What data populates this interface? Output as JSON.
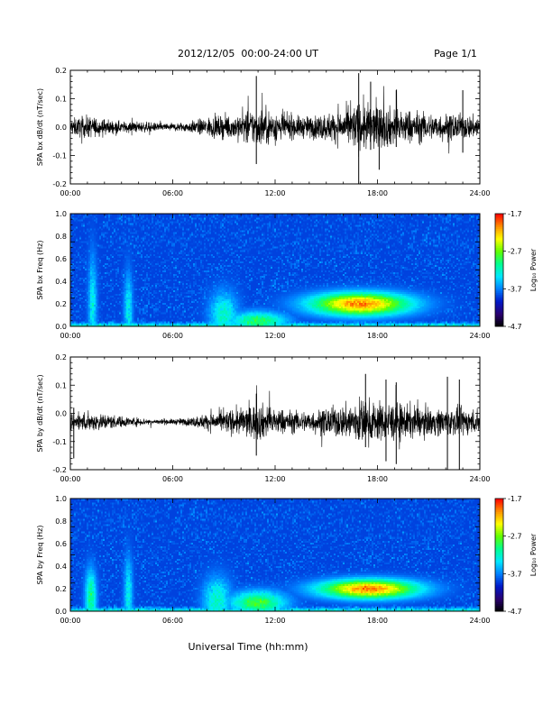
{
  "header": {
    "title": "2012/12/05  00:00-24:00 UT",
    "page": "Page 1/1"
  },
  "x_axis_title": "Universal Time (hh:mm)",
  "colorbar": {
    "label": "Log₁₀ Power",
    "ticks": [
      "-1.7",
      "-2.7",
      "-3.7",
      "-4.7"
    ],
    "values": [
      -1.7,
      -2.7,
      -3.7,
      -4.7
    ],
    "colors": [
      "#000000",
      "#2a0070",
      "#0018c8",
      "#0080ff",
      "#00e8ff",
      "#00ff90",
      "#60ff00",
      "#ffff00",
      "#ff9000",
      "#ff0000"
    ]
  },
  "chart_data": [
    {
      "type": "line",
      "panel": "bx-waveform",
      "ylabel": "SPA bx dB/dt (nT/sec)",
      "ylim": [
        -0.2,
        0.2
      ],
      "ytick_labels": [
        "0.2",
        "0.1",
        "0.0",
        "-0.1",
        "-0.2"
      ],
      "ytick_values": [
        0.2,
        0.1,
        0.0,
        -0.1,
        -0.2
      ],
      "xtick_labels": [
        "00:00",
        "06:00",
        "12:00",
        "18:00",
        "24:00"
      ],
      "xlim_hours": [
        0,
        24
      ],
      "series": [
        {
          "amplitude_envelope": {
            "hours": [
              0,
              1,
              2,
              3,
              4,
              5,
              6,
              7,
              8,
              9,
              10,
              11,
              12,
              13,
              14,
              15,
              16,
              17,
              18,
              19,
              20,
              21,
              22,
              23,
              24
            ],
            "amplitude": [
              0.03,
              0.04,
              0.03,
              0.02,
              0.02,
              0.015,
              0.015,
              0.02,
              0.035,
              0.04,
              0.05,
              0.07,
              0.06,
              0.04,
              0.04,
              0.05,
              0.06,
              0.09,
              0.08,
              0.07,
              0.06,
              0.05,
              0.05,
              0.045,
              0.04
            ]
          },
          "spikes": [
            {
              "hour": 10.9,
              "min": -0.13,
              "max": 0.18
            },
            {
              "hour": 16.9,
              "min": -0.21,
              "max": 0.19
            },
            {
              "hour": 17.6,
              "min": -0.08,
              "max": 0.16
            },
            {
              "hour": 18.1,
              "min": -0.15,
              "max": 0.06
            },
            {
              "hour": 19.1,
              "min": -0.07,
              "max": 0.13
            },
            {
              "hour": 23.0,
              "min": -0.09,
              "max": 0.13
            }
          ]
        }
      ]
    },
    {
      "type": "heatmap",
      "panel": "bx-spectrogram",
      "ylabel": "SPA bx Freq (Hz)",
      "ylim": [
        0.0,
        1.0
      ],
      "ytick_labels": [
        "1.0",
        "0.8",
        "0.6",
        "0.4",
        "0.2",
        "0.0"
      ],
      "ytick_values": [
        1.0,
        0.8,
        0.6,
        0.4,
        0.2,
        0.0
      ],
      "xtick_labels": [
        "00:00",
        "06:00",
        "12:00",
        "18:00",
        "24:00"
      ],
      "xlim_hours": [
        0,
        24
      ],
      "zlim": [
        -4.7,
        -1.7
      ],
      "background_power": -3.9,
      "enhancements": [
        {
          "hour_center": 17.0,
          "hour_width": 3.5,
          "freq_center": 0.2,
          "freq_width": 0.12,
          "power": -2.0
        },
        {
          "hour_center": 11.0,
          "hour_width": 2.0,
          "freq_center": 0.05,
          "freq_width": 0.1,
          "power": -2.9
        },
        {
          "hour_center": 9.0,
          "hour_width": 1.0,
          "freq_center": 0.1,
          "freq_width": 0.25,
          "power": -3.2
        },
        {
          "hour_center": 1.3,
          "hour_width": 0.3,
          "freq_center": 0.2,
          "freq_width": 0.5,
          "power": -3.3
        },
        {
          "hour_center": 3.4,
          "hour_width": 0.3,
          "freq_center": 0.15,
          "freq_width": 0.4,
          "power": -3.3
        }
      ]
    },
    {
      "type": "line",
      "panel": "by-waveform",
      "ylabel": "SPA by dB/dt (nT/sec)",
      "ylim": [
        -0.2,
        0.2
      ],
      "ytick_labels": [
        "0.2",
        "0.1",
        "0.0",
        "-0.1",
        "-0.2"
      ],
      "ytick_values": [
        0.2,
        0.1,
        0.0,
        -0.1,
        -0.2
      ],
      "xtick_labels": [
        "00:00",
        "06:00",
        "12:00",
        "18:00",
        "24:00"
      ],
      "xlim_hours": [
        0,
        24
      ],
      "series": [
        {
          "offset": -0.03,
          "amplitude_envelope": {
            "hours": [
              0,
              1,
              2,
              3,
              4,
              5,
              6,
              7,
              8,
              9,
              10,
              11,
              12,
              13,
              14,
              15,
              16,
              17,
              18,
              19,
              20,
              21,
              22,
              23,
              24
            ],
            "amplitude": [
              0.03,
              0.035,
              0.03,
              0.02,
              0.015,
              0.01,
              0.01,
              0.015,
              0.03,
              0.04,
              0.05,
              0.07,
              0.05,
              0.04,
              0.04,
              0.05,
              0.06,
              0.09,
              0.07,
              0.07,
              0.06,
              0.05,
              0.05,
              0.05,
              0.04
            ]
          },
          "spikes": [
            {
              "hour": 0.2,
              "min": -0.16,
              "max": 0.02
            },
            {
              "hour": 10.9,
              "min": -0.15,
              "max": 0.07
            },
            {
              "hour": 17.3,
              "min": -0.12,
              "max": 0.14
            },
            {
              "hour": 18.5,
              "min": -0.17,
              "max": 0.12
            },
            {
              "hour": 19.1,
              "min": -0.18,
              "max": 0.11
            },
            {
              "hour": 22.1,
              "min": -0.21,
              "max": 0.13
            },
            {
              "hour": 22.8,
              "min": -0.21,
              "max": 0.12
            }
          ]
        }
      ]
    },
    {
      "type": "heatmap",
      "panel": "by-spectrogram",
      "ylabel": "SPA by Freq (Hz)",
      "ylim": [
        0.0,
        1.0
      ],
      "ytick_labels": [
        "1.0",
        "0.8",
        "0.6",
        "0.4",
        "0.2",
        "0.0"
      ],
      "ytick_values": [
        1.0,
        0.8,
        0.6,
        0.4,
        0.2,
        0.0
      ],
      "xtick_labels": [
        "00:00",
        "06:00",
        "12:00",
        "18:00",
        "24:00"
      ],
      "xlim_hours": [
        0,
        24
      ],
      "zlim": [
        -4.7,
        -1.7
      ],
      "background_power": -3.9,
      "enhancements": [
        {
          "hour_center": 17.5,
          "hour_width": 3.5,
          "freq_center": 0.2,
          "freq_width": 0.1,
          "power": -2.0
        },
        {
          "hour_center": 11.0,
          "hour_width": 2.0,
          "freq_center": 0.08,
          "freq_width": 0.12,
          "power": -2.8
        },
        {
          "hour_center": 8.6,
          "hour_width": 1.0,
          "freq_center": 0.1,
          "freq_width": 0.25,
          "power": -3.2
        },
        {
          "hour_center": 1.2,
          "hour_width": 0.4,
          "freq_center": 0.12,
          "freq_width": 0.3,
          "power": -3.0
        },
        {
          "hour_center": 3.4,
          "hour_width": 0.3,
          "freq_center": 0.15,
          "freq_width": 0.4,
          "power": -3.3
        }
      ]
    }
  ]
}
